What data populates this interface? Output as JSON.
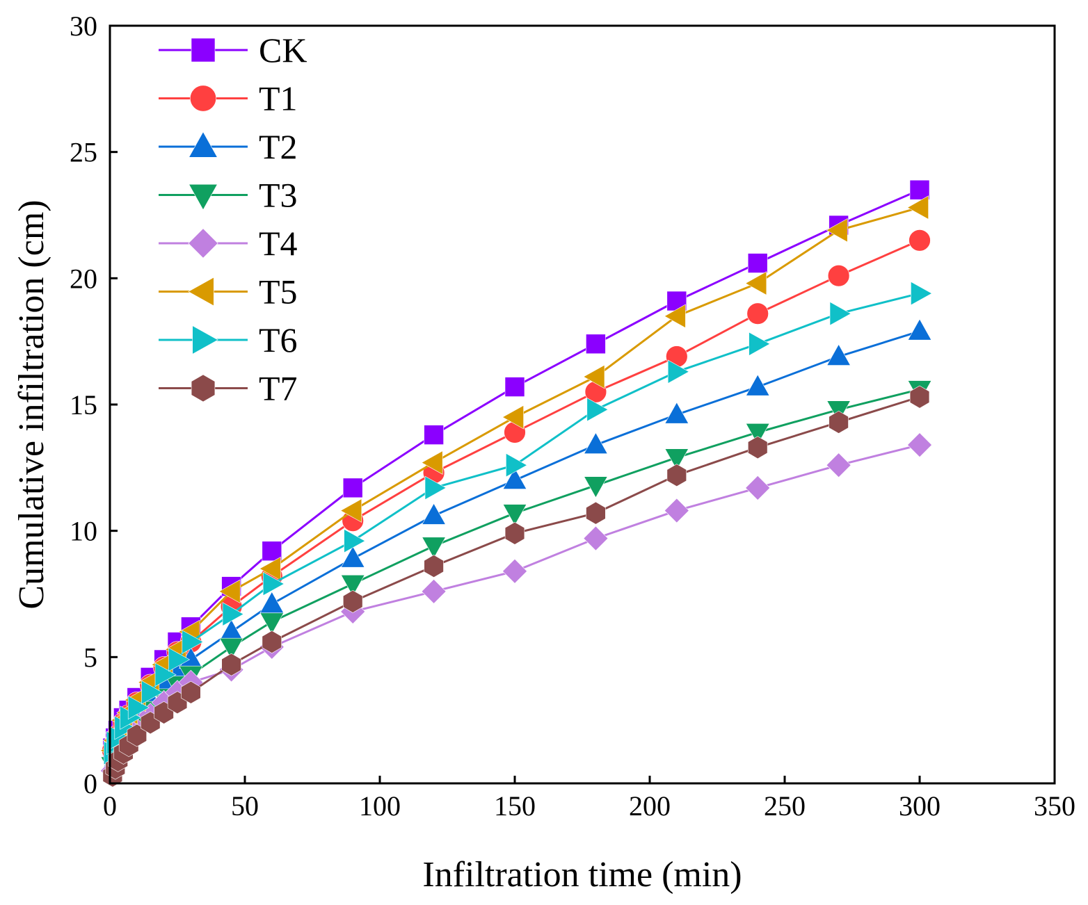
{
  "chart_data": {
    "type": "line",
    "title": "",
    "xlabel": "Infiltration time (min)",
    "ylabel": "Cumulative infiltration (cm)",
    "xlim": [
      0,
      350
    ],
    "ylim": [
      0,
      30
    ],
    "xticks": [
      0,
      50,
      100,
      150,
      200,
      250,
      300,
      350
    ],
    "yticks": [
      0,
      5,
      10,
      15,
      20,
      25,
      30
    ],
    "grid": false,
    "legend": "top-left",
    "x": [
      1,
      2,
      3,
      5,
      7,
      10,
      15,
      20,
      25,
      30,
      45,
      60,
      90,
      120,
      150,
      180,
      210,
      240,
      270,
      300
    ],
    "series": [
      {
        "name": "CK",
        "color": "#8b00ff",
        "marker": "square",
        "values": [
          1.4,
          1.8,
          2.1,
          2.6,
          2.9,
          3.4,
          4.2,
          4.9,
          5.6,
          6.2,
          7.8,
          9.2,
          11.7,
          13.8,
          15.7,
          17.4,
          19.1,
          20.6,
          22.1,
          23.5
        ]
      },
      {
        "name": "T1",
        "color": "#ff4040",
        "marker": "circle",
        "values": [
          1.3,
          1.6,
          1.9,
          2.4,
          2.7,
          3.2,
          3.9,
          4.6,
          5.2,
          5.6,
          7.0,
          8.2,
          10.4,
          12.3,
          13.9,
          15.5,
          16.9,
          18.6,
          20.1,
          21.5
        ]
      },
      {
        "name": "T2",
        "color": "#0a6fd8",
        "marker": "triangle-up",
        "values": [
          0.8,
          1.1,
          1.4,
          1.8,
          2.2,
          2.7,
          3.3,
          3.9,
          4.5,
          4.9,
          6.0,
          7.1,
          8.9,
          10.6,
          12.0,
          13.4,
          14.6,
          15.7,
          16.9,
          17.9
        ]
      },
      {
        "name": "T3",
        "color": "#10a060",
        "marker": "triangle-down",
        "values": [
          0.7,
          1.0,
          1.2,
          1.6,
          1.9,
          2.3,
          2.9,
          3.4,
          3.9,
          4.3,
          5.4,
          6.4,
          7.9,
          9.4,
          10.7,
          11.8,
          12.9,
          13.9,
          14.8,
          15.6
        ]
      },
      {
        "name": "T4",
        "color": "#c080e0",
        "marker": "diamond",
        "values": [
          0.5,
          0.8,
          1.0,
          1.4,
          1.7,
          2.1,
          2.7,
          3.2,
          3.6,
          4.0,
          4.5,
          5.4,
          6.8,
          7.6,
          8.4,
          9.7,
          10.8,
          11.7,
          12.6,
          13.4
        ]
      },
      {
        "name": "T5",
        "color": "#d99a00",
        "marker": "triangle-left",
        "values": [
          1.3,
          1.7,
          2.0,
          2.5,
          2.8,
          3.3,
          4.0,
          4.7,
          5.3,
          6.0,
          7.6,
          8.5,
          10.8,
          12.7,
          14.5,
          16.1,
          18.5,
          19.8,
          21.9,
          22.8
        ]
      },
      {
        "name": "T6",
        "color": "#10c0c8",
        "marker": "triangle-right",
        "values": [
          1.2,
          1.6,
          1.8,
          2.2,
          2.6,
          3.0,
          3.6,
          4.3,
          4.9,
          5.6,
          6.7,
          7.9,
          9.6,
          11.7,
          12.6,
          14.8,
          16.3,
          17.4,
          18.6,
          19.4
        ]
      },
      {
        "name": "T7",
        "color": "#8b4a4a",
        "marker": "hexagon",
        "values": [
          0.3,
          0.6,
          0.9,
          1.2,
          1.5,
          1.9,
          2.4,
          2.8,
          3.2,
          3.6,
          4.7,
          5.6,
          7.2,
          8.6,
          9.9,
          10.7,
          12.2,
          13.3,
          14.3,
          15.3
        ]
      }
    ]
  }
}
